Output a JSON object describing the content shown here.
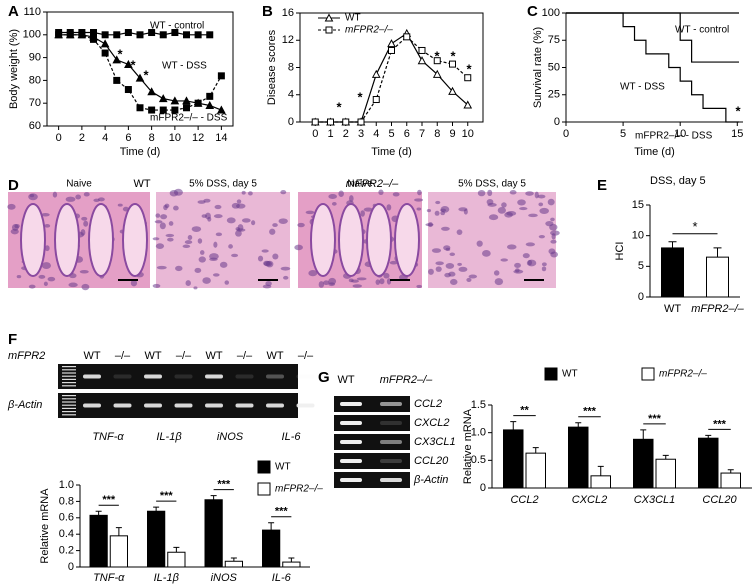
{
  "chart_data": [
    {
      "type": "line",
      "label": "A",
      "y_label": "Body weight (%)",
      "x_label": "Time (d)",
      "x": [
        0,
        1,
        2,
        3,
        4,
        5,
        6,
        7,
        8,
        9,
        10,
        11,
        12,
        13,
        14
      ],
      "xlim": [
        -1,
        15
      ],
      "xticks": [
        0,
        2,
        4,
        6,
        8,
        10,
        12,
        14
      ],
      "ylim": [
        60,
        110
      ],
      "yticks": [
        60,
        70,
        80,
        90,
        100,
        110
      ],
      "series": [
        {
          "name": "WT - control",
          "color": "#000000",
          "marker": "square",
          "filled": true,
          "dashed": false,
          "values": [
            101,
            101,
            101,
            101,
            100,
            100,
            101,
            100,
            101,
            100,
            101,
            100,
            100,
            100,
            null
          ]
        },
        {
          "name": "WT - DSS",
          "color": "#000000",
          "marker": "triangle",
          "filled": true,
          "dashed": false,
          "values": [
            100,
            100,
            100,
            99,
            96,
            89,
            87,
            81,
            75,
            72,
            71,
            71,
            70,
            69,
            67
          ]
        },
        {
          "name": "mFPR2–/– - DSS",
          "color": "#000000",
          "marker": "square",
          "filled": true,
          "dashed": true,
          "values": [
            100,
            100,
            100,
            98,
            92,
            80,
            76,
            68,
            67,
            67,
            67,
            68,
            70,
            73,
            82
          ]
        }
      ],
      "annotations": [
        "*",
        "*",
        "*"
      ]
    },
    {
      "type": "line",
      "label": "B",
      "y_label": "Disease scores",
      "x_label": "Time (d)",
      "x": [
        0,
        1,
        2,
        3,
        4,
        5,
        6,
        7,
        8,
        9,
        10
      ],
      "xlim": [
        -1,
        11
      ],
      "xticks": [
        0,
        1,
        2,
        3,
        4,
        5,
        6,
        7,
        8,
        9,
        10
      ],
      "ylim": [
        0,
        16
      ],
      "yticks": [
        0,
        4,
        8,
        12,
        16
      ],
      "series": [
        {
          "name": "WT",
          "color": "#000000",
          "marker": "triangle",
          "filled": false,
          "dashed": false,
          "values": [
            0,
            0,
            0,
            0,
            7,
            11.5,
            13,
            9,
            7,
            4.5,
            2.5
          ]
        },
        {
          "name": "mFPR2–/–",
          "color": "#000000",
          "marker": "square",
          "filled": false,
          "dashed": true,
          "values": [
            0,
            0,
            0,
            0,
            3.3,
            10.5,
            12.5,
            10.5,
            9,
            8.5,
            6.5
          ]
        }
      ],
      "legend": "top-left",
      "annotations": [
        "*",
        "*",
        "*",
        "*",
        "*"
      ]
    },
    {
      "type": "step",
      "label": "C",
      "y_label": "Survival rate (%)",
      "x_label": "Time (d)",
      "xlim": [
        0,
        15.5
      ],
      "xticks": [
        0,
        5,
        10,
        15
      ],
      "ylim": [
        0,
        100
      ],
      "yticks": [
        0,
        25,
        50,
        75,
        100
      ],
      "series": [
        {
          "name": "WT - control",
          "color": "#000000",
          "x": [
            0,
            15
          ],
          "values": [
            100,
            100
          ]
        },
        {
          "name": "WT - DSS",
          "color": "#000000",
          "x": [
            0,
            10,
            11,
            15
          ],
          "values": [
            100,
            75,
            55,
            55
          ]
        },
        {
          "name": "mFPR2–/– - DSS",
          "color": "#000000",
          "x": [
            0,
            5,
            6,
            7,
            9,
            10,
            11,
            12,
            14
          ],
          "values": [
            100,
            87.5,
            75,
            62.5,
            50,
            37.5,
            25,
            12.5,
            0
          ]
        }
      ],
      "annotations": [
        "*"
      ]
    },
    {
      "type": "bar",
      "label": "E",
      "title": "DSS, day 5",
      "y_label": "HCI",
      "categories": [
        "WT",
        "mFPR2–/–"
      ],
      "colors": [
        "#000000",
        "#ffffff"
      ],
      "values": [
        8,
        6.5
      ],
      "errors": [
        1,
        1.5
      ],
      "ylim": [
        0,
        15
      ],
      "yticks": [
        0,
        5,
        10,
        15
      ],
      "annotations": [
        "*"
      ]
    },
    {
      "type": "grouped-bar",
      "y_label": "Relative mRNA",
      "categories": [
        "TNF-α",
        "IL-1β",
        "iNOS",
        "IL-6"
      ],
      "series": [
        {
          "name": "WT",
          "color": "#000000",
          "values": [
            0.63,
            0.68,
            0.82,
            0.45
          ],
          "errors": [
            0.05,
            0.05,
            0.05,
            0.09
          ]
        },
        {
          "name": "mFPR2–/–",
          "color": "#ffffff",
          "values": [
            0.38,
            0.18,
            0.07,
            0.06
          ],
          "errors": [
            0.1,
            0.06,
            0.04,
            0.05
          ]
        }
      ],
      "ylim": [
        0,
        1
      ],
      "yticks": [
        0,
        0.2,
        0.4,
        0.6,
        0.8,
        {
          "value": 1,
          "label": "1.0"
        }
      ],
      "annotations": [
        "***",
        "***",
        "***",
        "***"
      ]
    },
    {
      "type": "grouped-bar",
      "y_label": "Relative mRNA",
      "categories": [
        "CCL2",
        "CXCL2",
        "CX3CL1",
        "CCL20"
      ],
      "series": [
        {
          "name": "WT",
          "color": "#000000",
          "values": [
            1.05,
            1.1,
            0.88,
            0.9
          ],
          "errors": [
            0.15,
            0.08,
            0.17,
            0.05
          ]
        },
        {
          "name": "mFPR2–/–",
          "color": "#ffffff",
          "values": [
            0.63,
            0.22,
            0.52,
            0.27
          ],
          "errors": [
            0.1,
            0.17,
            0.07,
            0.06
          ]
        }
      ],
      "ylim": [
        0,
        1.5
      ],
      "yticks": [
        0,
        0.5,
        {
          "value": 1,
          "label": "1.0"
        },
        1.5
      ],
      "annotations": [
        "**",
        "***",
        "***",
        "***"
      ]
    }
  ],
  "histology": {
    "label": "D",
    "groups": [
      {
        "label": "WT",
        "panels": [
          "Naive",
          "5% DSS, day 5"
        ]
      },
      {
        "label": "mFPR2–/–",
        "panels": [
          "Naive",
          "5% DSS, day 5"
        ]
      }
    ]
  },
  "gel_f": {
    "label": "F",
    "gene": "mFPR2",
    "lanes": [
      "WT",
      "–/–",
      "WT",
      "–/–",
      "WT",
      "–/–",
      "WT",
      "–/–"
    ],
    "control": "β-Actin",
    "genes": [
      "TNF-α",
      "IL-1β",
      "iNOS",
      "IL-6"
    ]
  },
  "gel_g": {
    "label": "G",
    "lanes": [
      "WT",
      "mFPR2–/–"
    ],
    "rows": [
      "CCL2",
      "CXCL2",
      "CX3CL1",
      "CCL20",
      "β-Actin"
    ]
  }
}
